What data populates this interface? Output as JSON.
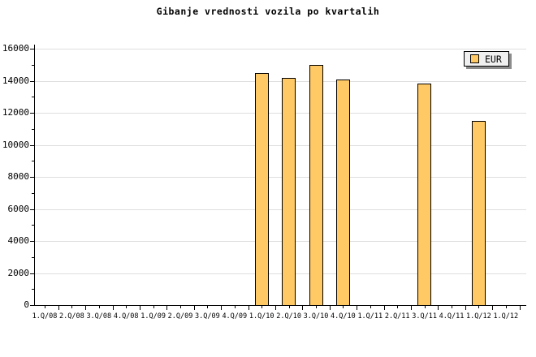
{
  "title": "Gibanje vrednosti vozila po kvartalih",
  "legend": {
    "label": "EUR"
  },
  "colors": {
    "background": "#FFFFFF",
    "bar_fill": "#FFC966",
    "bar_border": "#000000",
    "grid": "#DEDEDE",
    "axis": "#000000",
    "legend_bg": "#F0F0F0",
    "legend_shadow": "#8C8C8C",
    "text": "#000000"
  },
  "chart_data": {
    "type": "bar",
    "title": "Gibanje vrednosti vozila po kvartalih",
    "categories": [
      "1.Q/08",
      "2.Q/08",
      "3.Q/08",
      "4.Q/08",
      "1.Q/09",
      "2.Q/09",
      "3.Q/09",
      "4.Q/09",
      "1.Q/10",
      "2.Q/10",
      "3.Q/10",
      "4.Q/10",
      "1.Q/11",
      "2.Q/11",
      "3.Q/11",
      "4.Q/11",
      "1.Q/12",
      "1.Q/12"
    ],
    "series": [
      {
        "name": "EUR",
        "values": [
          null,
          null,
          null,
          null,
          null,
          null,
          null,
          null,
          14500,
          14200,
          15000,
          14100,
          null,
          null,
          13800,
          null,
          11500,
          null
        ]
      }
    ],
    "ylim": [
      0,
      16000
    ],
    "ytick_step": 2000,
    "y_minor_step": 1000,
    "grid": "horizontal",
    "legend_position": "top-right"
  }
}
